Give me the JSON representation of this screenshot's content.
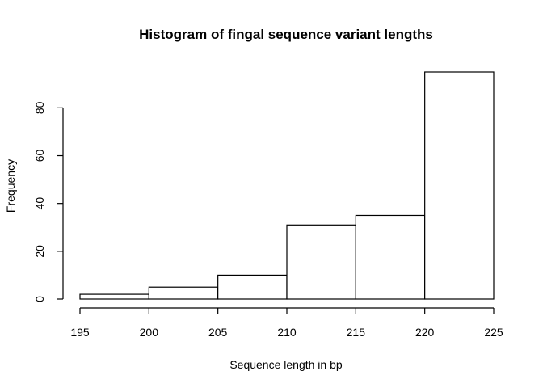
{
  "chart_data": {
    "type": "bar",
    "title": "Histogram of fingal sequence variant lengths",
    "xlabel": "Sequence length in bp",
    "ylabel": "Frequency",
    "bins": [
      {
        "start": 195,
        "end": 200,
        "count": 2
      },
      {
        "start": 200,
        "end": 205,
        "count": 5
      },
      {
        "start": 205,
        "end": 210,
        "count": 10
      },
      {
        "start": 210,
        "end": 215,
        "count": 31
      },
      {
        "start": 215,
        "end": 220,
        "count": 35
      },
      {
        "start": 220,
        "end": 225,
        "count": 95
      }
    ],
    "xlim": [
      195,
      225
    ],
    "ylim": [
      0,
      95
    ],
    "xticks": [
      195,
      200,
      205,
      210,
      215,
      220,
      225
    ],
    "yticks": [
      0,
      20,
      40,
      60,
      80
    ],
    "grid": false,
    "legend": false
  }
}
